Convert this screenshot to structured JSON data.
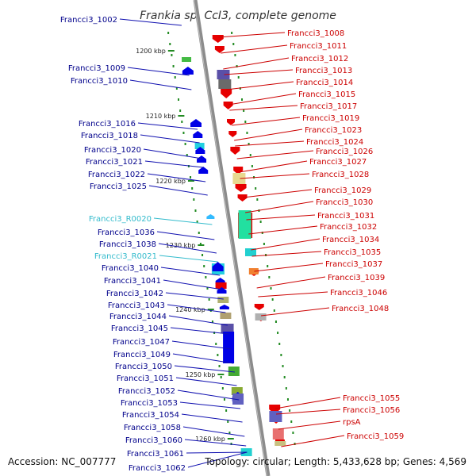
{
  "header": {
    "title": "Frankia sp. CcI3, complete genome"
  },
  "footer": {
    "accession": "Accession: NC_007777",
    "summary": "Topology: circular; Length: 5,433,628 bp; Genes: 4,569"
  },
  "scale_labels": [
    "1200 kbp",
    "1210 kbp",
    "1220 kbp",
    "1230 kbp",
    "1240 kbp",
    "1250 kbp",
    "1260 kbp"
  ],
  "labels_left": [
    "Francci3_1002",
    "Francci3_1009",
    "Francci3_1010",
    "Francci3_1016",
    "Francci3_1018",
    "Francci3_1020",
    "Francci3_1021",
    "Francci3_1022",
    "Francci3_1025",
    "Francci3_R0020",
    "Francci3_1036",
    "Francci3_1038",
    "Francci3_R0021",
    "Francci3_1040",
    "Francci3_1041",
    "Francci3_1042",
    "Francci3_1043",
    "Francci3_1044",
    "Francci3_1045",
    "Francci3_1047",
    "Francci3_1049",
    "Francci3_1050",
    "Francci3_1051",
    "Francci3_1052",
    "Francci3_1053",
    "Francci3_1054",
    "Francci3_1058",
    "Francci3_1060",
    "Francci3_1061",
    "Francci3_1062"
  ],
  "labels_right": [
    "Francci3_1008",
    "Francci3_1011",
    "Francci3_1012",
    "Francci3_1013",
    "Francci3_1014",
    "Francci3_1015",
    "Francci3_1017",
    "Francci3_1019",
    "Francci3_1023",
    "Francci3_1024",
    "Francci3_1026",
    "Francci3_1027",
    "Francci3_1028",
    "Francci3_1029",
    "Francci3_1030",
    "Francci3_1031",
    "Francci3_1032",
    "Francci3_1034",
    "Francci3_1035",
    "Francci3_1037",
    "Francci3_1039",
    "Francci3_1046",
    "Francci3_1048",
    "Francci3_1055",
    "Francci3_1056",
    "rpsA",
    "Francci3_1059"
  ],
  "colors": {
    "backbone": "#8c8c8c",
    "forward_gene": "#e60000",
    "reverse_gene": "#0000e6",
    "rna_gene": "#33ccdd",
    "tick": "#228b22",
    "label_left": "#00008b",
    "label_right": "#cc0000"
  }
}
